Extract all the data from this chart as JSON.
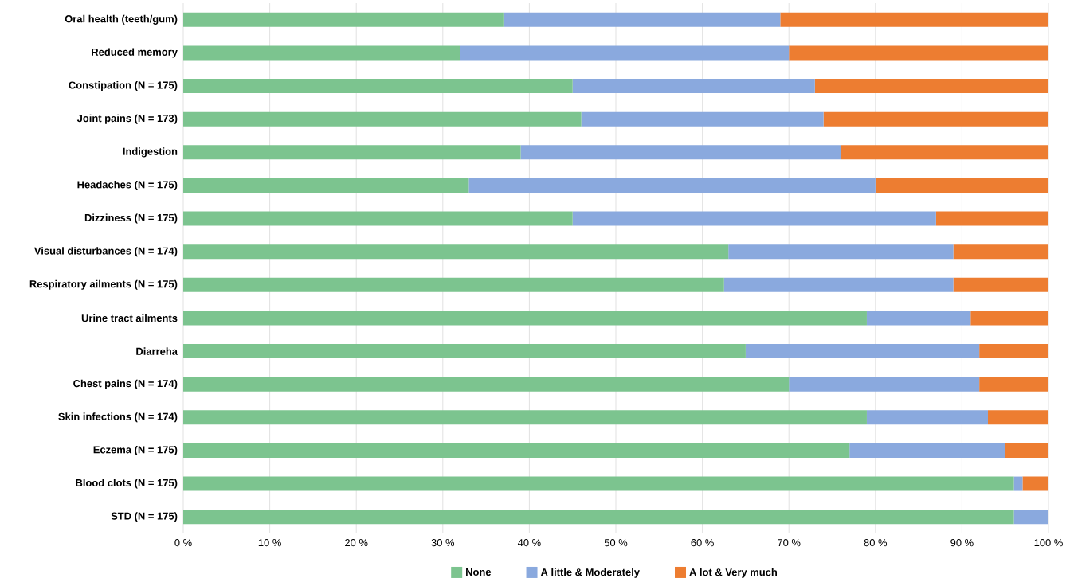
{
  "chart_data": {
    "type": "bar",
    "orientation": "horizontal",
    "stacked": true,
    "categories": [
      "Oral health (teeth/gum)",
      "Reduced memory",
      "Constipation (N = 175)",
      "Joint pains (N = 173)",
      "Indigestion",
      "Headaches (N = 175)",
      "Dizziness (N = 175)",
      "Visual disturbances (N = 174)",
      "Respiratory ailments (N = 175)",
      "Urine tract ailments",
      "Diarreha",
      "Chest pains (N = 174)",
      "Skin infections (N = 174)",
      "Eczema (N = 175)",
      "Blood clots (N = 175)",
      "STD (N = 175)"
    ],
    "series": [
      {
        "name": "None",
        "color": "#7cc48f",
        "values": [
          37,
          32,
          45,
          46,
          39,
          33,
          45,
          63,
          62.5,
          79,
          65,
          70,
          79,
          77,
          96,
          96
        ]
      },
      {
        "name": "A little & Moderately",
        "color": "#8aa9de",
        "values": [
          32,
          38,
          28,
          28,
          37,
          47,
          42,
          26,
          26.5,
          12,
          27,
          22,
          14,
          18,
          1,
          4
        ]
      },
      {
        "name": "A lot & Very much",
        "color": "#ed7d31",
        "values": [
          31,
          30,
          27,
          26,
          24,
          20,
          13,
          11,
          11,
          9,
          8,
          8,
          7,
          5,
          3,
          0
        ]
      }
    ],
    "xlim": [
      0,
      100
    ],
    "xticks": [
      {
        "value": 0,
        "label": "0 %"
      },
      {
        "value": 10,
        "label": "10 %"
      },
      {
        "value": 20,
        "label": "20 %"
      },
      {
        "value": 30,
        "label": "30 %"
      },
      {
        "value": 40,
        "label": "40 %"
      },
      {
        "value": 50,
        "label": "50 %"
      },
      {
        "value": 60,
        "label": "60 %"
      },
      {
        "value": 70,
        "label": "70 %"
      },
      {
        "value": 80,
        "label": "80 %"
      },
      {
        "value": 90,
        "label": "90 %"
      },
      {
        "value": 100,
        "label": "100 %"
      }
    ],
    "grid": "x",
    "legend": "bottom"
  }
}
